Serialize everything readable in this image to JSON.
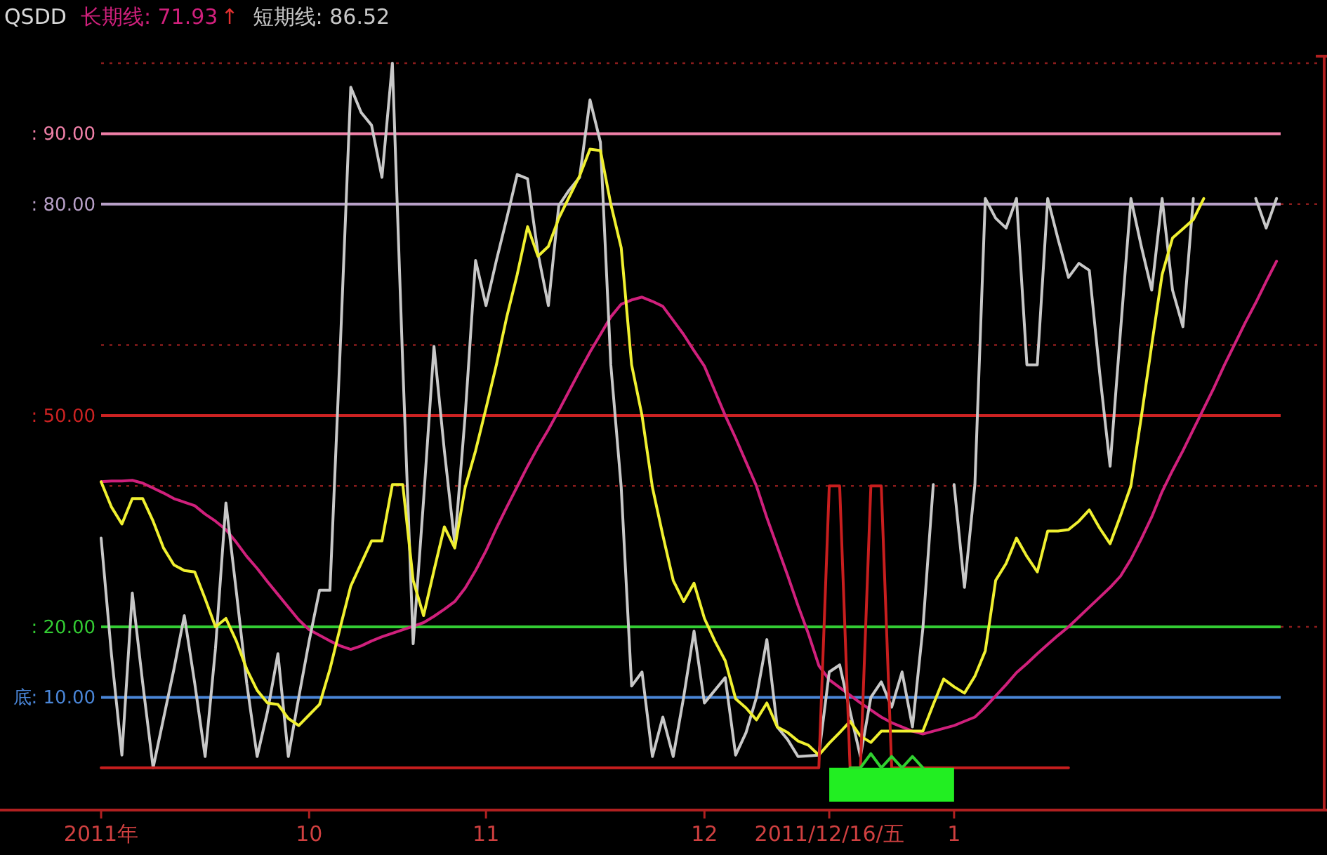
{
  "chart_data": {
    "type": "line",
    "title": "QSDD",
    "legend": "top left",
    "grid": "y",
    "tick_labels": "x",
    "categories": [
      "2011年",
      null,
      null,
      null,
      null,
      null,
      null,
      null,
      null,
      null,
      null,
      null,
      null,
      null,
      null,
      null,
      null,
      null,
      null,
      null,
      "10",
      null,
      null,
      null,
      null,
      null,
      null,
      null,
      null,
      null,
      null,
      null,
      null,
      null,
      null,
      null,
      null,
      "11",
      null,
      null,
      null,
      null,
      null,
      null,
      null,
      null,
      null,
      null,
      null,
      null,
      null,
      null,
      null,
      null,
      null,
      null,
      null,
      null,
      "12",
      null,
      null,
      null,
      null,
      null,
      null,
      null,
      null,
      null,
      null,
      null,
      "2011/12/16/五",
      null,
      null,
      null,
      null,
      null,
      null,
      null,
      null,
      null,
      null,
      null,
      "1",
      null,
      null,
      null,
      null,
      null,
      null,
      null,
      null,
      null,
      null,
      null,
      null,
      null,
      null,
      null,
      null,
      null,
      null,
      null,
      null,
      null,
      null,
      null,
      null,
      null,
      null,
      null,
      null,
      null,
      null,
      null,
      null,
      null,
      null
    ],
    "ylim": [
      -6,
      101
    ],
    "yticks": [
      {
        "value": 20,
        "label": null
      },
      {
        "value": 40,
        "label": null
      },
      {
        "value": 60,
        "label": null
      },
      {
        "value": 80,
        "label": null
      },
      {
        "value": 100,
        "label": null
      }
    ],
    "ref_lines": [
      {
        "axis": "y",
        "value": 80,
        "label": ": 80.00",
        "color": "#b8a0c8"
      },
      {
        "axis": "y",
        "value": 20,
        "label": ": 20.00",
        "color": "#33cc33"
      },
      {
        "axis": "y",
        "value": 10,
        "label": "底: 10.00",
        "color": "#4a86d8"
      },
      {
        "axis": "y",
        "value": 90,
        "label": ": 90.00",
        "color": "#f080a8"
      },
      {
        "axis": "y",
        "value": 50,
        "label": ": 50.00",
        "color": "#cc2222"
      }
    ],
    "annotations": [
      "↑"
    ],
    "series": [
      {
        "name": "长期线: 71.93",
        "color": "#d0207c",
        "values": [
          40.6,
          40.7,
          40.7,
          40.8,
          40.4,
          39.7,
          39,
          38.2,
          37.7,
          37.2,
          36,
          35,
          33.8,
          32,
          30,
          28.3,
          26.4,
          24.6,
          22.8,
          21,
          19.6,
          18.8,
          18,
          17.3,
          16.8,
          17.3,
          18,
          18.6,
          19.1,
          19.6,
          20.1,
          20.6,
          21.5,
          22.5,
          23.6,
          25.5,
          28,
          30.8,
          34,
          37,
          39.9,
          42.8,
          45.5,
          48,
          50.7,
          53.5,
          56.3,
          59,
          61.5,
          64,
          65.8,
          66.4,
          66.8,
          66.2,
          65.5,
          63.5,
          61.5,
          59.2,
          57,
          53.5,
          50,
          46.8,
          43.4,
          40,
          35.5,
          31.4,
          27.3,
          23,
          19,
          14.5,
          12.5,
          11.4,
          10.3,
          9.2,
          8.2,
          7.2,
          6.4,
          5.8,
          5.2,
          4.8,
          5.2,
          5.6,
          6,
          6.6,
          7.2,
          8.6,
          10.2,
          11.8,
          13.5,
          14.8,
          16.2,
          17.5,
          18.8,
          20,
          21.4,
          22.8,
          24.2,
          25.6,
          27.2,
          29.6,
          32.5,
          35.6,
          39.2,
          42.2,
          45,
          48,
          51,
          54,
          57.2,
          60.2,
          63.2,
          66,
          69,
          71.9,
          null,
          null,
          null
        ]
      },
      {
        "name": "短期线: 86.52",
        "color": "#c8c8c8",
        "values": [
          32.6,
          16,
          1.8,
          24.8,
          12,
          0,
          7,
          14,
          21.6,
          12,
          1.6,
          17,
          37.6,
          25,
          12,
          1.6,
          8,
          16.2,
          1.6,
          10,
          18,
          25.2,
          25.2,
          60,
          96.6,
          93,
          91.2,
          83.8,
          100,
          57.2,
          17.6,
          38,
          59.8,
          45,
          31.8,
          50,
          72,
          65.6,
          72,
          78,
          84.2,
          83.6,
          73,
          65.6,
          79.8,
          82,
          83.8,
          94.8,
          88.8,
          57.2,
          39.8,
          11.6,
          13.6,
          1.6,
          7.2,
          1.6,
          10,
          19.4,
          9.2,
          11,
          12.8,
          1.8,
          5,
          10,
          18.2,
          5.8,
          4,
          1.6,
          1.7,
          1.8,
          13.6,
          14.6,
          8,
          1.6,
          10,
          12.2,
          8.6,
          13.6,
          5.8,
          19.8,
          40.2,
          null,
          40.2,
          25.6,
          40.2,
          80.8,
          78,
          76.6,
          80.8,
          57.2,
          57.2,
          80.8,
          75,
          69.6,
          71.6,
          70.6,
          56,
          42.8,
          62,
          80.8,
          74,
          67.8,
          80.8,
          67.8,
          62.6,
          80.8,
          null,
          null,
          null,
          null,
          null,
          80.8,
          76.6,
          80.8,
          null,
          null,
          null
        ]
      },
      {
        "color": "#f0f030",
        "values": [
          40.6,
          37,
          34.6,
          38.2,
          38.2,
          35,
          31.2,
          28.8,
          28,
          27.8,
          24,
          20,
          21.2,
          18,
          14,
          11,
          9.2,
          9,
          7,
          6,
          7.5,
          9,
          14,
          20,
          25.8,
          29,
          32.2,
          32.2,
          40.2,
          40.2,
          26.6,
          21.6,
          28,
          34.2,
          31.2,
          39.8,
          45,
          51,
          57.2,
          64,
          70,
          76.8,
          72.6,
          74,
          78,
          81,
          84,
          87.8,
          87.6,
          80,
          73.8,
          57.2,
          50,
          39.8,
          33,
          26.6,
          23.6,
          26.2,
          21.2,
          18,
          15.2,
          9.8,
          8.5,
          6.8,
          9.2,
          5.8,
          5,
          3.8,
          3.2,
          1.8,
          3.5,
          5,
          6.6,
          4.5,
          3.6,
          5.2,
          5.2,
          5.2,
          5.2,
          5.2,
          9,
          12.6,
          11.5,
          10.6,
          13,
          16.6,
          26.6,
          29,
          32.6,
          30,
          27.8,
          33.6,
          33.6,
          33.8,
          35,
          36.6,
          34,
          31.8,
          35.8,
          40,
          49.8,
          60,
          70,
          75.2,
          76.5,
          77.8,
          80.8,
          null,
          null,
          null,
          null,
          null,
          null,
          null,
          null,
          null,
          null
        ]
      },
      {
        "color": "#c81e1e",
        "values": [
          0,
          0,
          0,
          0,
          0,
          0,
          0,
          0,
          0,
          0,
          0,
          0,
          0,
          0,
          0,
          0,
          0,
          0,
          0,
          0,
          0,
          0,
          0,
          0,
          0,
          0,
          0,
          0,
          0,
          0,
          0,
          0,
          0,
          0,
          0,
          0,
          0,
          0,
          0,
          0,
          0,
          0,
          0,
          0,
          0,
          0,
          0,
          0,
          0,
          0,
          0,
          0,
          0,
          0,
          0,
          0,
          0,
          0,
          0,
          0,
          0,
          0,
          0,
          0,
          0,
          0,
          0,
          0,
          0,
          0,
          40,
          40,
          0,
          0,
          40,
          40,
          0,
          0,
          0,
          0,
          0,
          0,
          0,
          0,
          0,
          0,
          0,
          0,
          0,
          0,
          0,
          0,
          0,
          0,
          null,
          null,
          null,
          null,
          null,
          null,
          null,
          null,
          null,
          null,
          null,
          null,
          null,
          null,
          null,
          null,
          null,
          null,
          null,
          null,
          null,
          null,
          null
        ]
      },
      {
        "type": "area",
        "color": "#22ee22",
        "values": [
          null,
          null,
          null,
          null,
          null,
          null,
          null,
          null,
          null,
          null,
          null,
          null,
          null,
          null,
          null,
          null,
          null,
          null,
          null,
          null,
          null,
          null,
          null,
          null,
          null,
          null,
          null,
          null,
          null,
          null,
          null,
          null,
          null,
          null,
          null,
          null,
          null,
          null,
          null,
          null,
          null,
          null,
          null,
          null,
          null,
          null,
          null,
          null,
          null,
          null,
          null,
          null,
          null,
          null,
          null,
          null,
          null,
          null,
          null,
          null,
          null,
          null,
          null,
          null,
          null,
          null,
          null,
          null,
          null,
          null,
          -4.8,
          -4.8,
          -4.8,
          -4.8,
          -4.8,
          -4.8,
          -4.8,
          -4.8,
          -4.8,
          -4.8,
          -4.8,
          -4.8,
          -4.8,
          null,
          null,
          null,
          null,
          null,
          null,
          null,
          null,
          null,
          null,
          null,
          null,
          null,
          null,
          null,
          null,
          null,
          null,
          null,
          null,
          null,
          null,
          null,
          null,
          null,
          null,
          null,
          null,
          null,
          null,
          null,
          null,
          null,
          null
        ]
      },
      {
        "color": "#30d030",
        "values": [
          null,
          null,
          null,
          null,
          null,
          null,
          null,
          null,
          null,
          null,
          null,
          null,
          null,
          null,
          null,
          null,
          null,
          null,
          null,
          null,
          null,
          null,
          null,
          null,
          null,
          null,
          null,
          null,
          null,
          null,
          null,
          null,
          null,
          null,
          null,
          null,
          null,
          null,
          null,
          null,
          null,
          null,
          null,
          null,
          null,
          null,
          null,
          null,
          null,
          null,
          null,
          null,
          null,
          null,
          null,
          null,
          null,
          null,
          null,
          null,
          null,
          null,
          null,
          null,
          null,
          null,
          null,
          null,
          null,
          null,
          null,
          null,
          0,
          0,
          2,
          0,
          1.6,
          0,
          1.6,
          0,
          null,
          null,
          null,
          null,
          null,
          null,
          null,
          null,
          null,
          null,
          null,
          null,
          null,
          null,
          null,
          null,
          null,
          null,
          null,
          null,
          null,
          null,
          null,
          null,
          null,
          null,
          null,
          null,
          null,
          null,
          null,
          null,
          null,
          null,
          null,
          null,
          null
        ]
      }
    ]
  }
}
